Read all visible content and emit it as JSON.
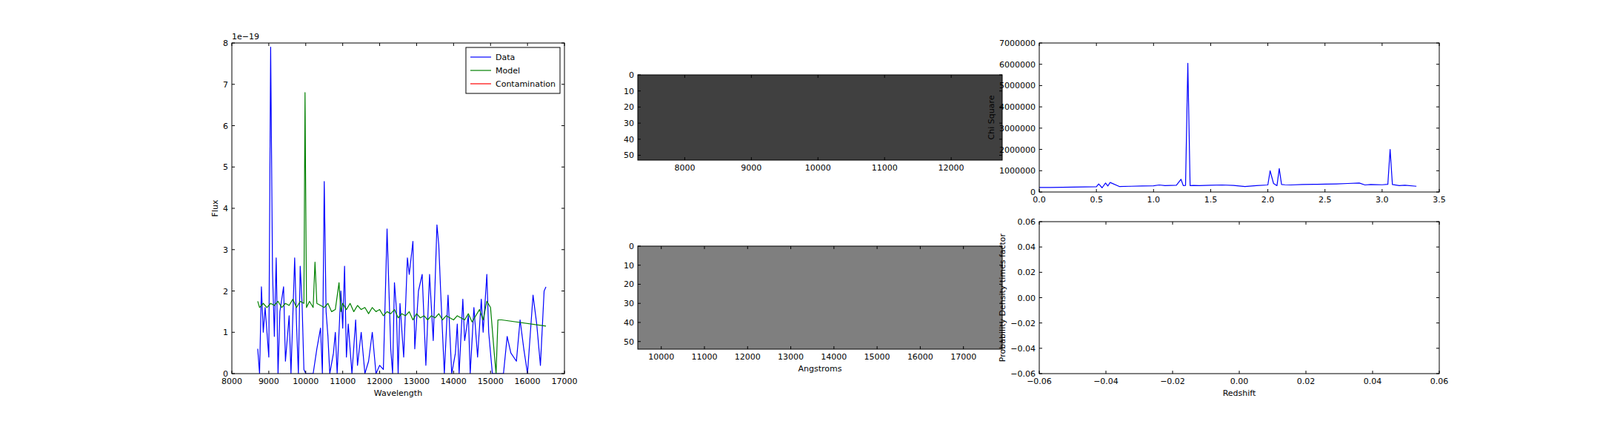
{
  "chart_data": [
    {
      "type": "line",
      "xlabel": "Wavelength",
      "ylabel": "Flux",
      "offset_text": "1e−19",
      "xlim": [
        8000,
        17000
      ],
      "ylim": [
        0,
        8
      ],
      "xticks": [
        8000,
        9000,
        10000,
        11000,
        12000,
        13000,
        14000,
        15000,
        16000,
        17000
      ],
      "yticks": [
        0,
        1,
        2,
        3,
        4,
        5,
        6,
        7,
        8
      ],
      "grid": false,
      "legend": "upper right",
      "series": [
        {
          "name": "Data",
          "color": "#0000ff",
          "x": [
            8700,
            8750,
            8800,
            8850,
            8900,
            9000,
            9050,
            9100,
            9150,
            9200,
            9250,
            9300,
            9400,
            9450,
            9550,
            9600,
            9700,
            9750,
            9800,
            9850,
            9900,
            9950,
            10000,
            10100,
            10200,
            10300,
            10400,
            10450,
            10500,
            10550,
            10600,
            10650,
            10750,
            10800,
            10850,
            10950,
            11000,
            11050,
            11100,
            11150,
            11250,
            11350,
            11400,
            11500,
            11600,
            11700,
            11800,
            11900,
            12000,
            12100,
            12200,
            12300,
            12350,
            12400,
            12450,
            12500,
            12550,
            12650,
            12750,
            12800,
            12900,
            12950,
            13050,
            13150,
            13250,
            13350,
            13450,
            13550,
            13600,
            13650,
            13750,
            13850,
            13950,
            14050,
            14100,
            14150,
            14250,
            14300,
            14400,
            14450,
            14550,
            14650,
            14750,
            14800,
            14900,
            14950,
            15050,
            15150,
            15350,
            15450,
            15550,
            15700,
            15800,
            15900,
            16000,
            16150,
            16250,
            16350,
            16450,
            16500
          ],
          "values": [
            0.6,
            0,
            2.1,
            1.0,
            1.6,
            0.4,
            7.9,
            2.5,
            0.9,
            2.8,
            0,
            1.5,
            2.1,
            0.3,
            1.4,
            0,
            2.8,
            1.2,
            0,
            2.6,
            1.7,
            0.1,
            0,
            0,
            0,
            0.6,
            1.1,
            0,
            4.65,
            1.5,
            0.9,
            0,
            0.5,
            1.0,
            0,
            2.0,
            1.1,
            2.6,
            0.4,
            1.2,
            0,
            1.3,
            0.2,
            1.0,
            0,
            0.3,
            1.0,
            0,
            0.2,
            0.1,
            3.5,
            0.6,
            0,
            2.2,
            1.6,
            0,
            1.7,
            0.4,
            2.8,
            2.4,
            3.2,
            0.6,
            2.0,
            2.4,
            0.2,
            2.4,
            0.8,
            3.6,
            3.1,
            2.0,
            0,
            1.9,
            0,
            0.5,
            1.2,
            0,
            1.8,
            0.8,
            1.4,
            0,
            1.6,
            0.4,
            1.8,
            1.0,
            2.4,
            1.0,
            0,
            0,
            0,
            0.9,
            0.5,
            0.3,
            1.3,
            0.6,
            0,
            1.9,
            1.2,
            0.2,
            2.0,
            2.1
          ]
        },
        {
          "name": "Model",
          "color": "#008000",
          "x": [
            8700,
            8750,
            8850,
            8950,
            9050,
            9150,
            9250,
            9350,
            9450,
            9550,
            9650,
            9750,
            9850,
            9950,
            9980,
            10020,
            10100,
            10200,
            10250,
            10300,
            10400,
            10500,
            10600,
            10700,
            10800,
            10900,
            10950,
            11000,
            11100,
            11200,
            11300,
            11400,
            11500,
            11600,
            11700,
            11800,
            11900,
            12000,
            12100,
            12200,
            12300,
            12400,
            12500,
            12600,
            12700,
            12800,
            12900,
            13000,
            13100,
            13200,
            13300,
            13400,
            13500,
            13600,
            13700,
            13800,
            13900,
            14000,
            14100,
            14200,
            14300,
            14400,
            14500,
            14600,
            14700,
            14800,
            14900,
            15000,
            15100,
            15150,
            15200,
            15300,
            16500
          ],
          "values": [
            1.75,
            1.6,
            1.7,
            1.6,
            1.7,
            1.65,
            1.75,
            1.6,
            1.7,
            1.65,
            1.8,
            1.6,
            1.75,
            1.7,
            6.8,
            1.6,
            1.75,
            1.6,
            2.7,
            1.7,
            1.65,
            1.6,
            1.7,
            1.5,
            1.55,
            2.2,
            1.5,
            1.7,
            1.55,
            1.7,
            1.5,
            1.65,
            1.55,
            1.6,
            1.45,
            1.6,
            1.5,
            1.55,
            1.4,
            1.5,
            1.45,
            1.55,
            1.35,
            1.45,
            1.4,
            1.5,
            1.3,
            1.45,
            1.35,
            1.4,
            1.3,
            1.4,
            1.35,
            1.45,
            1.3,
            1.4,
            1.35,
            1.3,
            1.4,
            1.35,
            1.3,
            1.45,
            1.25,
            1.4,
            1.55,
            1.3,
            1.75,
            1.6,
            0.5,
            0.0,
            1.3,
            1.3,
            1.15
          ]
        },
        {
          "name": "Contamination",
          "color": "#ff0000",
          "x": [],
          "values": []
        }
      ]
    },
    {
      "type": "image",
      "color": "#404040",
      "xlim": [
        7295,
        12766
      ],
      "ylim": [
        53,
        0
      ],
      "xticks": [
        8000,
        9000,
        10000,
        11000,
        12000
      ],
      "yticks": [
        0,
        10,
        20,
        30,
        40,
        50
      ],
      "grid": false
    },
    {
      "type": "image",
      "color": "#7f7f7f",
      "xlabel": "Angstroms",
      "xlim": [
        9456,
        17898
      ],
      "ylim": [
        54,
        0
      ],
      "xticks": [
        10000,
        11000,
        12000,
        13000,
        14000,
        15000,
        16000,
        17000
      ],
      "yticks": [
        0,
        10,
        20,
        30,
        40,
        50
      ],
      "grid": false
    },
    {
      "type": "line",
      "ylabel": "Chi Square",
      "xlim": [
        0,
        3.5
      ],
      "ylim": [
        0,
        7000000
      ],
      "xticks": [
        {
          "value": 0,
          "label": "0.0"
        },
        {
          "value": 0.5,
          "label": "0.5"
        },
        {
          "value": 1,
          "label": "1.0"
        },
        {
          "value": 1.5,
          "label": "1.5"
        },
        {
          "value": 2,
          "label": "2.0"
        },
        {
          "value": 2.5,
          "label": "2.5"
        },
        {
          "value": 3,
          "label": "3.0"
        },
        {
          "value": 3.5,
          "label": "3.5"
        }
      ],
      "yticks": [
        0,
        1000000,
        2000000,
        3000000,
        4000000,
        5000000,
        6000000,
        7000000
      ],
      "grid": false,
      "series": [
        {
          "color": "#0000ff",
          "x": [
            0.0,
            0.1,
            0.2,
            0.3,
            0.4,
            0.5,
            0.52,
            0.55,
            0.58,
            0.6,
            0.62,
            0.7,
            0.8,
            0.9,
            1.0,
            1.05,
            1.1,
            1.15,
            1.2,
            1.24,
            1.26,
            1.28,
            1.3,
            1.32,
            1.35,
            1.4,
            1.5,
            1.6,
            1.7,
            1.8,
            1.9,
            2.0,
            2.02,
            2.05,
            2.08,
            2.1,
            2.12,
            2.15,
            2.2,
            2.3,
            2.4,
            2.5,
            2.6,
            2.7,
            2.8,
            2.85,
            2.9,
            3.0,
            3.05,
            3.07,
            3.09,
            3.15,
            3.2,
            3.3
          ],
          "values": [
            210000,
            215000,
            220000,
            230000,
            240000,
            250000,
            380000,
            200000,
            420000,
            280000,
            450000,
            260000,
            270000,
            280000,
            290000,
            330000,
            300000,
            310000,
            320000,
            600000,
            300000,
            310000,
            6050000,
            300000,
            310000,
            300000,
            320000,
            330000,
            310000,
            260000,
            300000,
            330000,
            1000000,
            400000,
            300000,
            1100000,
            350000,
            340000,
            330000,
            350000,
            360000,
            370000,
            380000,
            400000,
            420000,
            330000,
            350000,
            340000,
            360000,
            2000000,
            350000,
            300000,
            320000,
            270000
          ]
        }
      ]
    },
    {
      "type": "line",
      "xlabel": "Redshift",
      "ylabel": "Probability Density times factor",
      "xlim": [
        -0.06,
        0.06
      ],
      "ylim": [
        -0.06,
        0.06
      ],
      "xticks": [
        {
          "value": -0.06,
          "label": "−0.06"
        },
        {
          "value": -0.04,
          "label": "−0.04"
        },
        {
          "value": -0.02,
          "label": "−0.02"
        },
        {
          "value": 0,
          "label": "0.00"
        },
        {
          "value": 0.02,
          "label": "0.02"
        },
        {
          "value": 0.04,
          "label": "0.04"
        },
        {
          "value": 0.06,
          "label": "0.06"
        }
      ],
      "yticks": [
        {
          "value": -0.06,
          "label": "−0.06"
        },
        {
          "value": -0.04,
          "label": "−0.04"
        },
        {
          "value": -0.02,
          "label": "−0.02"
        },
        {
          "value": 0,
          "label": "0.00"
        },
        {
          "value": 0.02,
          "label": "0.02"
        },
        {
          "value": 0.04,
          "label": "0.04"
        },
        {
          "value": 0.06,
          "label": "0.06"
        }
      ],
      "grid": false,
      "series": []
    }
  ]
}
